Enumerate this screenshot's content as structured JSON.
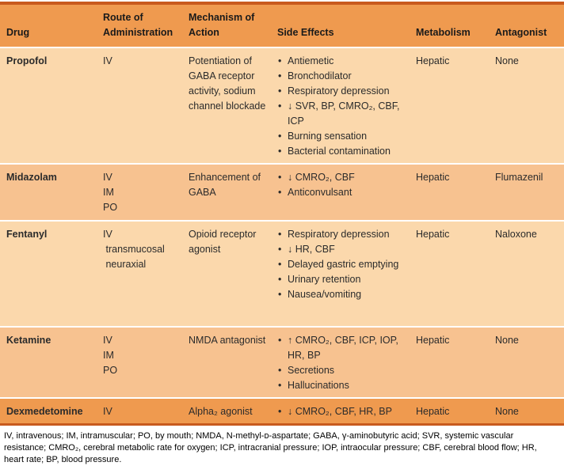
{
  "table": {
    "columns": [
      "Drug",
      "Route of Administration",
      "Mechanism of Action",
      "Side Effects",
      "Metabolism",
      "Antagonist"
    ],
    "rows": [
      {
        "drug": "Propofol",
        "route": "IV",
        "mechanism": "Potentiation of GABA receptor activity, sodium channel blockade",
        "side_effects": [
          "Antiemetic",
          "Bronchodilator",
          "Respiratory depression",
          "↓ SVR, BP, CMRO₂, CBF, ICP",
          "Burning sensation",
          "Bacterial contamination"
        ],
        "metabolism": "Hepatic",
        "antagonist": "None"
      },
      {
        "drug": "Midazolam",
        "route": "IV\nIM\nPO",
        "mechanism": "Enhancement of GABA",
        "side_effects": [
          "↓ CMRO₂, CBF",
          "Anticonvulsant"
        ],
        "metabolism": "Hepatic",
        "antagonist": "Flumazenil"
      },
      {
        "drug": "Fentanyl",
        "route": "IV\n transmucosal\n neuraxial",
        "mechanism": "Opioid receptor agonist",
        "side_effects": [
          "Respiratory depression",
          "↓ HR, CBF",
          "Delayed gastric emptying",
          "Urinary retention",
          "Nausea/vomiting"
        ],
        "metabolism": "Hepatic",
        "antagonist": "Naloxone"
      },
      {
        "drug": "Ketamine",
        "route": "IV\nIM\nPO",
        "mechanism": "NMDA antagonist",
        "side_effects": [
          "↑ CMRO₂, CBF, ICP, IOP, HR, BP",
          "Secretions",
          "Hallucinations"
        ],
        "metabolism": "Hepatic",
        "antagonist": "None"
      },
      {
        "drug": "Dexmedetomine",
        "route": "IV",
        "mechanism": "Alpha₂ agonist",
        "side_effects": [
          "↓ CMRO₂, CBF, HR, BP"
        ],
        "metabolism": "Hepatic",
        "antagonist": "None"
      }
    ]
  },
  "footnote": "IV, intravenous; IM, intramuscular; PO, by mouth; NMDA, N-methyl-ᴅ-aspartate; GABA, γ-aminobutyric acid; SVR, systemic vascular resistance; CMRO₂, cerebral metabolic rate for oxygen; ICP, intracranial pressure; IOP, intraocular pressure; CBF, cerebral blood flow; HR, heart rate; BP, blood pressure.",
  "colors": {
    "table_border": "#c85a1e",
    "header_bg": "#ef9a4f",
    "row_light_bg": "#fbd8ac",
    "row_medium_bg": "#f7c290",
    "row_dark_bg": "#ef9a4f",
    "text": "#2b2b2b"
  }
}
